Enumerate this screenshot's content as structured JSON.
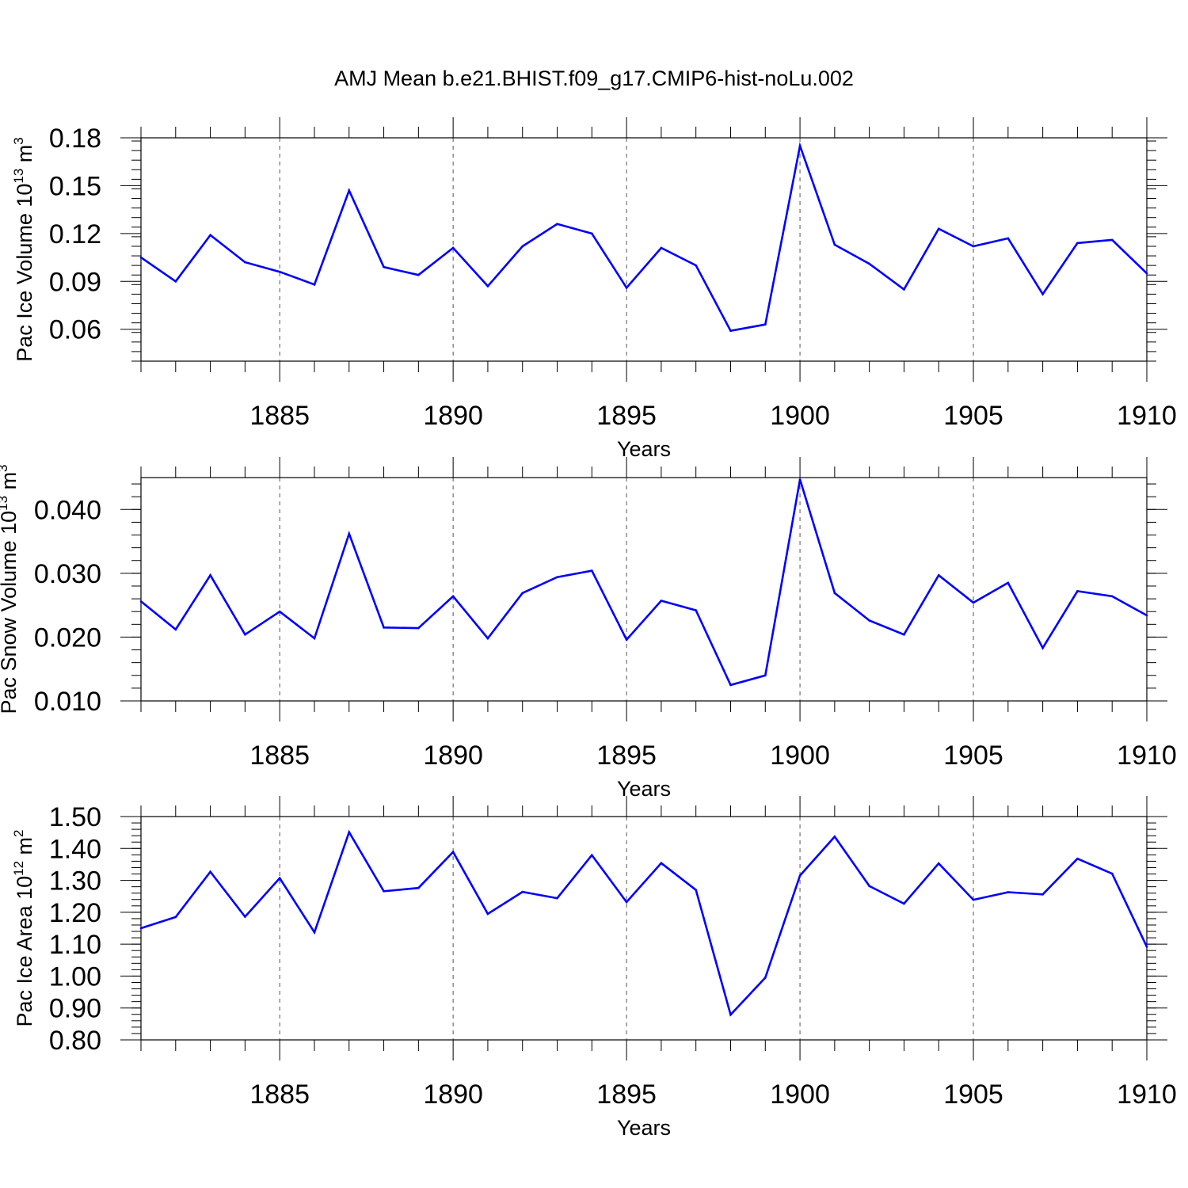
{
  "title": "AMJ Mean b.e21.BHIST.f09_g17.CMIP6-hist-noLu.002",
  "chart_data": [
    {
      "type": "line",
      "ylabel": {
        "text": "Pac Ice Volume 10",
        "exp": "13",
        "unit_base": " m",
        "unit_exp": "3"
      },
      "xlabel": "Years",
      "xlim": [
        1881,
        1910
      ],
      "ylim": [
        0.04,
        0.18
      ],
      "yticks": [
        0.06,
        0.09,
        0.12,
        0.15,
        0.18
      ],
      "ytick_labels": [
        "0.06",
        "0.09",
        "0.12",
        "0.15",
        "0.18"
      ],
      "xticks": [
        1885,
        1890,
        1895,
        1900,
        1905,
        1910
      ],
      "xtick_labels": [
        "1885",
        "1890",
        "1895",
        "1900",
        "1905",
        "1910"
      ],
      "grid": "vertical dashed at major x ticks",
      "color": "#0000ff",
      "x": [
        1881,
        1882,
        1883,
        1884,
        1885,
        1886,
        1887,
        1888,
        1889,
        1890,
        1891,
        1892,
        1893,
        1894,
        1895,
        1896,
        1897,
        1898,
        1899,
        1900,
        1901,
        1902,
        1903,
        1904,
        1905,
        1906,
        1907,
        1908,
        1909,
        1910
      ],
      "y": [
        0.105,
        0.09,
        0.119,
        0.102,
        0.096,
        0.088,
        0.147,
        0.099,
        0.094,
        0.111,
        0.087,
        0.112,
        0.126,
        0.12,
        0.086,
        0.111,
        0.1,
        0.059,
        0.063,
        0.175,
        0.113,
        0.101,
        0.085,
        0.123,
        0.112,
        0.117,
        0.082,
        0.114,
        0.116,
        0.095
      ]
    },
    {
      "type": "line",
      "ylabel": {
        "text": "Pac Snow Volume 10",
        "exp": "13",
        "unit_base": " m",
        "unit_exp": "3"
      },
      "xlabel": "Years",
      "xlim": [
        1881,
        1910
      ],
      "ylim": [
        0.01,
        0.045
      ],
      "yticks": [
        0.01,
        0.02,
        0.03,
        0.04
      ],
      "ytick_labels": [
        "0.010",
        "0.020",
        "0.030",
        "0.040"
      ],
      "xticks": [
        1885,
        1890,
        1895,
        1900,
        1905,
        1910
      ],
      "xtick_labels": [
        "1885",
        "1890",
        "1895",
        "1900",
        "1905",
        "1910"
      ],
      "grid": "vertical dashed at major x ticks",
      "color": "#0000ff",
      "x": [
        1881,
        1882,
        1883,
        1884,
        1885,
        1886,
        1887,
        1888,
        1889,
        1890,
        1891,
        1892,
        1893,
        1894,
        1895,
        1896,
        1897,
        1898,
        1899,
        1900,
        1901,
        1902,
        1903,
        1904,
        1905,
        1906,
        1907,
        1908,
        1909,
        1910
      ],
      "y": [
        0.0256,
        0.0212,
        0.0297,
        0.0204,
        0.024,
        0.0198,
        0.0362,
        0.0215,
        0.0214,
        0.0264,
        0.0198,
        0.0269,
        0.0294,
        0.0304,
        0.0196,
        0.0257,
        0.0242,
        0.0125,
        0.014,
        0.0447,
        0.0269,
        0.0226,
        0.0204,
        0.0297,
        0.0254,
        0.0285,
        0.0183,
        0.0272,
        0.0264,
        0.0234
      ]
    },
    {
      "type": "line",
      "ylabel": {
        "text": "Pac Ice Area 10",
        "exp": "12",
        "unit_base": " m",
        "unit_exp": "2"
      },
      "xlabel": "Years",
      "xlim": [
        1881,
        1910
      ],
      "ylim": [
        0.8,
        1.5
      ],
      "yticks": [
        0.8,
        0.9,
        1.0,
        1.1,
        1.2,
        1.3,
        1.4,
        1.5
      ],
      "ytick_labels": [
        "0.80",
        "0.90",
        "1.00",
        "1.10",
        "1.20",
        "1.30",
        "1.40",
        "1.50"
      ],
      "xticks": [
        1885,
        1890,
        1895,
        1900,
        1905,
        1910
      ],
      "xtick_labels": [
        "1885",
        "1890",
        "1895",
        "1900",
        "1905",
        "1910"
      ],
      "grid": "vertical dashed at major x ticks",
      "color": "#0000ff",
      "x": [
        1881,
        1882,
        1883,
        1884,
        1885,
        1886,
        1887,
        1888,
        1889,
        1890,
        1891,
        1892,
        1893,
        1894,
        1895,
        1896,
        1897,
        1898,
        1899,
        1900,
        1901,
        1902,
        1903,
        1904,
        1905,
        1906,
        1907,
        1908,
        1909,
        1910
      ],
      "y": [
        1.15,
        1.185,
        1.327,
        1.186,
        1.307,
        1.137,
        1.451,
        1.266,
        1.276,
        1.389,
        1.195,
        1.264,
        1.244,
        1.379,
        1.232,
        1.354,
        1.27,
        0.879,
        0.995,
        1.315,
        1.437,
        1.282,
        1.227,
        1.353,
        1.239,
        1.263,
        1.256,
        1.368,
        1.321,
        1.092
      ]
    }
  ]
}
